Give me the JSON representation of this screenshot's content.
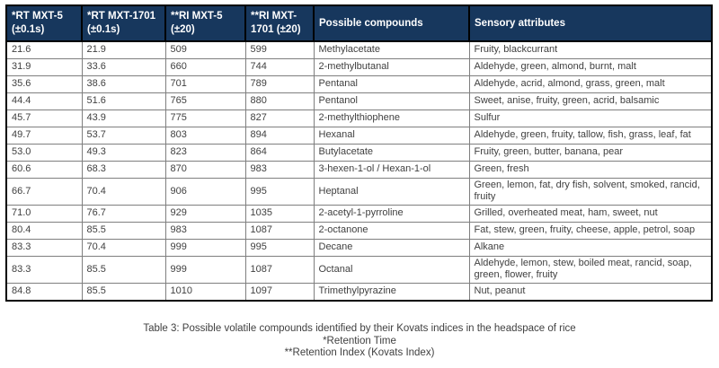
{
  "colors": {
    "header_bg": "#17375d",
    "header_text": "#ffffff",
    "body_text": "#404040",
    "inner_border": "#7f7f7f",
    "outer_border": "#000000"
  },
  "table": {
    "columns": [
      {
        "label": "*RT MXT-5 (±0.1s)"
      },
      {
        "label": "*RT MXT-1701 (±0.1s)"
      },
      {
        "label": "**RI MXT-5 (±20)"
      },
      {
        "label": "**RI MXT-1701 (±20)"
      },
      {
        "label": "Possible compounds"
      },
      {
        "label": "Sensory attributes"
      }
    ],
    "rows": [
      {
        "rt_mxt5": "21.6",
        "rt_mxt1701": "21.9",
        "ri_mxt5": "509",
        "ri_mxt1701": "599",
        "compound": "Methylacetate",
        "sensory": "Fruity, blackcurrant"
      },
      {
        "rt_mxt5": "31.9",
        "rt_mxt1701": "33.6",
        "ri_mxt5": "660",
        "ri_mxt1701": "744",
        "compound": "2-methylbutanal",
        "sensory": "Aldehyde, green, almond, burnt, malt"
      },
      {
        "rt_mxt5": "35.6",
        "rt_mxt1701": "38.6",
        "ri_mxt5": "701",
        "ri_mxt1701": "789",
        "compound": "Pentanal",
        "sensory": "Aldehyde, acrid, almond, grass, green, malt"
      },
      {
        "rt_mxt5": "44.4",
        "rt_mxt1701": "51.6",
        "ri_mxt5": "765",
        "ri_mxt1701": "880",
        "compound": "Pentanol",
        "sensory": "Sweet, anise, fruity, green, acrid, balsamic"
      },
      {
        "rt_mxt5": "45.7",
        "rt_mxt1701": "43.9",
        "ri_mxt5": "775",
        "ri_mxt1701": "827",
        "compound": "2-methylthiophene",
        "sensory": "Sulfur"
      },
      {
        "rt_mxt5": "49.7",
        "rt_mxt1701": "53.7",
        "ri_mxt5": "803",
        "ri_mxt1701": "894",
        "compound": "Hexanal",
        "sensory": "Aldehyde, green, fruity, tallow, fish, grass, leaf, fat"
      },
      {
        "rt_mxt5": "53.0",
        "rt_mxt1701": "49.3",
        "ri_mxt5": "823",
        "ri_mxt1701": "864",
        "compound": "Butylacetate",
        "sensory": "Fruity, green, butter, banana, pear"
      },
      {
        "rt_mxt5": "60.6",
        "rt_mxt1701": "68.3",
        "ri_mxt5": "870",
        "ri_mxt1701": "983",
        "compound": "3-hexen-1-ol / Hexan-1-ol",
        "sensory": "Green, fresh"
      },
      {
        "rt_mxt5": "66.7",
        "rt_mxt1701": "70.4",
        "ri_mxt5": "906",
        "ri_mxt1701": "995",
        "compound": "Heptanal",
        "sensory": "Green, lemon, fat, dry fish, solvent, smoked, rancid, fruity"
      },
      {
        "rt_mxt5": "71.0",
        "rt_mxt1701": "76.7",
        "ri_mxt5": "929",
        "ri_mxt1701": "1035",
        "compound": "2-acetyl-1-pyrroline",
        "sensory": "Grilled, overheated meat, ham, sweet, nut"
      },
      {
        "rt_mxt5": "80.4",
        "rt_mxt1701": "85.5",
        "ri_mxt5": "983",
        "ri_mxt1701": "1087",
        "compound": "2-octanone",
        "sensory": "Fat, stew, green, fruity, cheese, apple, petrol,  soap"
      },
      {
        "rt_mxt5": "83.3",
        "rt_mxt1701": "70.4",
        "ri_mxt5": "999",
        "ri_mxt1701": "995",
        "compound": "Decane",
        "sensory": "Alkane"
      },
      {
        "rt_mxt5": "83.3",
        "rt_mxt1701": "85.5",
        "ri_mxt5": "999",
        "ri_mxt1701": "1087",
        "compound": "Octanal",
        "sensory": "Aldehyde, lemon, stew, boiled meat, rancid, soap, green, flower, fruity"
      },
      {
        "rt_mxt5": "84.8",
        "rt_mxt1701": "85.5",
        "ri_mxt5": "1010",
        "ri_mxt1701": "1097",
        "compound": "Trimethylpyrazine",
        "sensory": "Nut, peanut"
      }
    ]
  },
  "caption": {
    "line1": "Table 3: Possible volatile compounds identified by their Kovats indices in the headspace of rice",
    "line2": "*Retention Time",
    "line3": "**Retention Index (Kovats Index)"
  }
}
